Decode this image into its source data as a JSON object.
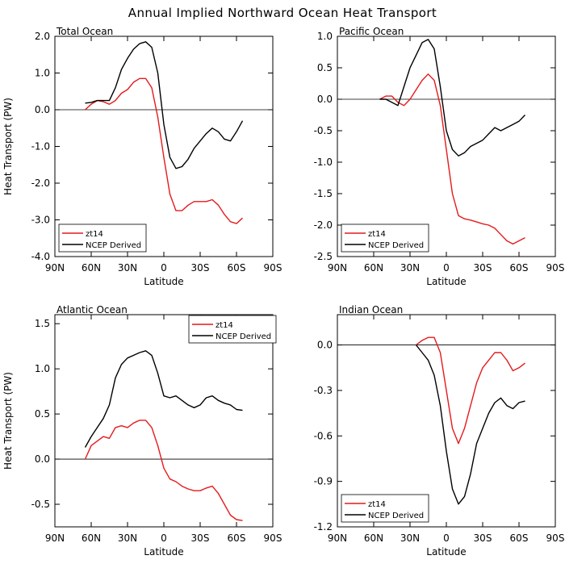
{
  "figure_title": "Annual Implied Northward Ocean Heat Transport",
  "colors": {
    "model": "#e41a1c",
    "ncep": "#000000"
  },
  "chart_data": [
    {
      "type": "line",
      "title": "Total Ocean",
      "xlabel": "Latitude",
      "ylabel": "Heat Transport (PW)",
      "xlim": [
        -90,
        90
      ],
      "xticks": [
        -90,
        -60,
        -30,
        0,
        30,
        60,
        90
      ],
      "xticklabels": [
        "90N",
        "60N",
        "30N",
        "0",
        "30S",
        "60S",
        "90S"
      ],
      "ylim": [
        -4.0,
        2.0
      ],
      "yticks": [
        -4.0,
        -3.0,
        -2.0,
        -1.0,
        0.0,
        1.0,
        2.0
      ],
      "yticklabels": [
        "-4.0",
        "-3.0",
        "-2.0",
        "-1.0",
        "0.0",
        "1.0",
        "2.0"
      ],
      "legend": {
        "position": "bottom-left",
        "entries": [
          "zt14",
          "NCEP Derived"
        ]
      },
      "series": [
        {
          "name": "zt14",
          "color_key": "model",
          "x": [
            -65,
            -60,
            -55,
            -50,
            -45,
            -40,
            -35,
            -30,
            -25,
            -20,
            -15,
            -10,
            -5,
            0,
            5,
            10,
            15,
            20,
            25,
            30,
            35,
            40,
            45,
            50,
            55,
            60,
            65
          ],
          "y": [
            0.0,
            0.15,
            0.25,
            0.22,
            0.15,
            0.25,
            0.45,
            0.55,
            0.75,
            0.85,
            0.85,
            0.6,
            -0.2,
            -1.3,
            -2.3,
            -2.75,
            -2.75,
            -2.6,
            -2.5,
            -2.5,
            -2.5,
            -2.45,
            -2.6,
            -2.85,
            -3.05,
            -3.1,
            -2.95
          ]
        },
        {
          "name": "NCEP Derived",
          "color_key": "ncep",
          "x": [
            -65,
            -60,
            -55,
            -50,
            -45,
            -40,
            -35,
            -30,
            -25,
            -20,
            -15,
            -10,
            -5,
            0,
            5,
            10,
            15,
            20,
            25,
            30,
            35,
            40,
            45,
            50,
            55,
            60,
            65
          ],
          "y": [
            0.18,
            0.2,
            0.25,
            0.25,
            0.25,
            0.6,
            1.1,
            1.4,
            1.65,
            1.8,
            1.85,
            1.7,
            1.0,
            -0.4,
            -1.3,
            -1.6,
            -1.55,
            -1.35,
            -1.05,
            -0.85,
            -0.65,
            -0.5,
            -0.6,
            -0.8,
            -0.85,
            -0.6,
            -0.3
          ]
        }
      ]
    },
    {
      "type": "line",
      "title": "Pacific Ocean",
      "xlabel": "Latitude",
      "ylabel": "",
      "xlim": [
        -90,
        90
      ],
      "xticks": [
        -90,
        -60,
        -30,
        0,
        30,
        60,
        90
      ],
      "xticklabels": [
        "90N",
        "60N",
        "30N",
        "0",
        "30S",
        "60S",
        "90S"
      ],
      "ylim": [
        -2.5,
        1.0
      ],
      "yticks": [
        -2.5,
        -2.0,
        -1.5,
        -1.0,
        -0.5,
        0.0,
        0.5,
        1.0
      ],
      "yticklabels": [
        "-2.5",
        "-2.0",
        "-1.5",
        "-1.0",
        "-0.5",
        "0.0",
        "0.5",
        "1.0"
      ],
      "legend": {
        "position": "bottom-left",
        "entries": [
          "zt14",
          "NCEP Derived"
        ]
      },
      "series": [
        {
          "name": "zt14",
          "color_key": "model",
          "x": [
            -55,
            -50,
            -45,
            -40,
            -35,
            -30,
            -25,
            -20,
            -15,
            -10,
            -5,
            0,
            5,
            10,
            15,
            20,
            25,
            30,
            35,
            40,
            45,
            50,
            55,
            60,
            65
          ],
          "y": [
            0.0,
            0.05,
            0.05,
            -0.05,
            -0.1,
            0.0,
            0.15,
            0.3,
            0.4,
            0.3,
            -0.1,
            -0.8,
            -1.5,
            -1.85,
            -1.9,
            -1.92,
            -1.95,
            -1.98,
            -2.0,
            -2.05,
            -2.15,
            -2.25,
            -2.3,
            -2.25,
            -2.2
          ]
        },
        {
          "name": "NCEP Derived",
          "color_key": "ncep",
          "x": [
            -55,
            -50,
            -45,
            -40,
            -35,
            -30,
            -25,
            -20,
            -15,
            -10,
            -5,
            0,
            5,
            10,
            15,
            20,
            25,
            30,
            35,
            40,
            45,
            50,
            55,
            60,
            65
          ],
          "y": [
            0.0,
            0.0,
            -0.05,
            -0.1,
            0.2,
            0.5,
            0.7,
            0.9,
            0.95,
            0.8,
            0.2,
            -0.5,
            -0.8,
            -0.9,
            -0.85,
            -0.75,
            -0.7,
            -0.65,
            -0.55,
            -0.45,
            -0.5,
            -0.45,
            -0.4,
            -0.35,
            -0.25
          ]
        }
      ]
    },
    {
      "type": "line",
      "title": "Atlantic Ocean",
      "xlabel": "Latitude",
      "ylabel": "Heat Transport (PW)",
      "xlim": [
        -90,
        90
      ],
      "xticks": [
        -90,
        -60,
        -30,
        0,
        30,
        60,
        90
      ],
      "xticklabels": [
        "90N",
        "60N",
        "30N",
        "0",
        "30S",
        "60S",
        "90S"
      ],
      "ylim": [
        -0.75,
        1.6
      ],
      "yticks": [
        -0.5,
        0.0,
        0.5,
        1.0,
        1.5
      ],
      "yticklabels": [
        "-0.5",
        "0.0",
        "0.5",
        "1.0",
        "1.5"
      ],
      "legend": {
        "position": "top-right",
        "entries": [
          "zt14",
          "NCEP Derived"
        ]
      },
      "series": [
        {
          "name": "zt14",
          "color_key": "model",
          "x": [
            -65,
            -60,
            -55,
            -50,
            -45,
            -40,
            -35,
            -30,
            -25,
            -20,
            -15,
            -10,
            -5,
            0,
            5,
            10,
            15,
            20,
            25,
            30,
            35,
            40,
            45,
            50,
            55,
            60,
            65
          ],
          "y": [
            0.0,
            0.15,
            0.2,
            0.25,
            0.23,
            0.35,
            0.37,
            0.35,
            0.4,
            0.43,
            0.43,
            0.35,
            0.15,
            -0.1,
            -0.22,
            -0.25,
            -0.3,
            -0.33,
            -0.35,
            -0.35,
            -0.32,
            -0.3,
            -0.38,
            -0.5,
            -0.62,
            -0.67,
            -0.68
          ]
        },
        {
          "name": "NCEP Derived",
          "color_key": "ncep",
          "x": [
            -65,
            -60,
            -55,
            -50,
            -45,
            -40,
            -35,
            -30,
            -25,
            -20,
            -15,
            -10,
            -5,
            0,
            5,
            10,
            15,
            20,
            25,
            30,
            35,
            40,
            45,
            50,
            55,
            60,
            65
          ],
          "y": [
            0.13,
            0.25,
            0.35,
            0.45,
            0.6,
            0.9,
            1.05,
            1.12,
            1.15,
            1.18,
            1.2,
            1.15,
            0.95,
            0.7,
            0.68,
            0.7,
            0.65,
            0.6,
            0.57,
            0.6,
            0.68,
            0.7,
            0.65,
            0.62,
            0.6,
            0.55,
            0.54
          ]
        }
      ]
    },
    {
      "type": "line",
      "title": "Indian Ocean",
      "xlabel": "Latitude",
      "ylabel": "",
      "xlim": [
        -90,
        90
      ],
      "xticks": [
        -90,
        -60,
        -30,
        0,
        30,
        60,
        90
      ],
      "xticklabels": [
        "90N",
        "60N",
        "30N",
        "0",
        "30S",
        "60S",
        "90S"
      ],
      "ylim": [
        -1.2,
        0.2
      ],
      "yticks": [
        -1.2,
        -0.9,
        -0.6,
        -0.3,
        0.0
      ],
      "yticklabels": [
        "-1.2",
        "-0.9",
        "-0.6",
        "-0.3",
        "0.0"
      ],
      "legend": {
        "position": "bottom-left",
        "entries": [
          "zt14",
          "NCEP Derived"
        ]
      },
      "series": [
        {
          "name": "zt14",
          "color_key": "model",
          "x": [
            -25,
            -20,
            -15,
            -10,
            -5,
            0,
            5,
            10,
            15,
            20,
            25,
            30,
            35,
            40,
            45,
            50,
            55,
            60,
            65
          ],
          "y": [
            0.0,
            0.03,
            0.05,
            0.05,
            -0.05,
            -0.3,
            -0.55,
            -0.65,
            -0.55,
            -0.4,
            -0.25,
            -0.15,
            -0.1,
            -0.05,
            -0.05,
            -0.1,
            -0.17,
            -0.15,
            -0.12
          ]
        },
        {
          "name": "NCEP Derived",
          "color_key": "ncep",
          "x": [
            -25,
            -20,
            -15,
            -10,
            -5,
            0,
            5,
            10,
            15,
            20,
            25,
            30,
            35,
            40,
            45,
            50,
            55,
            60,
            65
          ],
          "y": [
            0.0,
            -0.05,
            -0.1,
            -0.2,
            -0.4,
            -0.7,
            -0.95,
            -1.05,
            -1.0,
            -0.85,
            -0.65,
            -0.55,
            -0.45,
            -0.38,
            -0.35,
            -0.4,
            -0.42,
            -0.38,
            -0.37
          ]
        }
      ]
    }
  ]
}
